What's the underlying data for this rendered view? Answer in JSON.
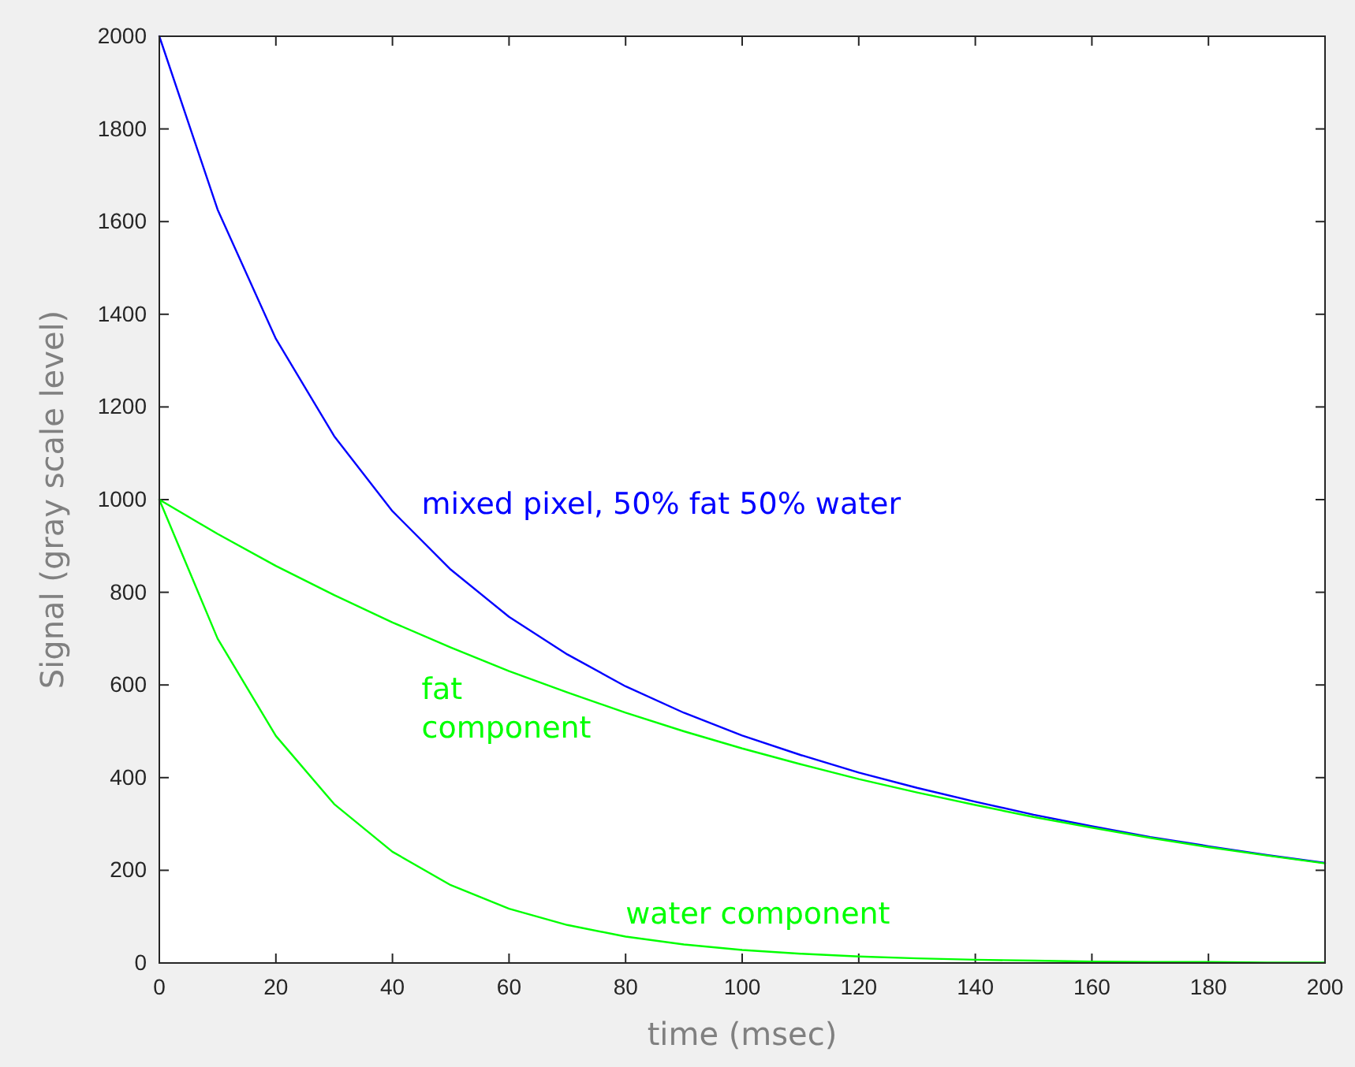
{
  "chart_data": {
    "type": "line",
    "xlabel": "time (msec)",
    "ylabel": "Signal (gray scale level)",
    "x": [
      0,
      10,
      20,
      30,
      40,
      50,
      60,
      70,
      80,
      90,
      100,
      110,
      120,
      130,
      140,
      150,
      160,
      170,
      180,
      190,
      200
    ],
    "xlim": [
      0,
      200
    ],
    "xticks": [
      0,
      20,
      40,
      60,
      80,
      100,
      120,
      140,
      160,
      180,
      200
    ],
    "ylim": [
      0,
      2000
    ],
    "yticks": [
      0,
      200,
      400,
      600,
      800,
      1000,
      1200,
      1400,
      1600,
      1800,
      2000
    ],
    "grid": false,
    "legend": false,
    "marker": "none",
    "line_style": "solid",
    "series": [
      {
        "name": "mixed pixel, 50% fat 50% water",
        "color": "#0000ff",
        "values": [
          2000,
          1626,
          1347,
          1137,
          975,
          849,
          747,
          666,
          597,
          540,
          491,
          449,
          411,
          378,
          348,
          320,
          295,
          272,
          252,
          233,
          216
        ]
      },
      {
        "name": "fat component",
        "color": "#00ff00",
        "values": [
          1000,
          926,
          857,
          794,
          735,
          681,
          630,
          584,
          540,
          500,
          463,
          429,
          397,
          368,
          341,
          315,
          292,
          270,
          250,
          232,
          215
        ]
      },
      {
        "name": "water component",
        "color": "#00ff00",
        "values": [
          1000,
          700,
          490,
          343,
          240,
          168,
          117,
          82,
          57,
          40,
          28,
          20,
          14,
          10,
          7,
          5,
          3,
          2,
          2,
          1,
          1
        ]
      }
    ]
  }
}
